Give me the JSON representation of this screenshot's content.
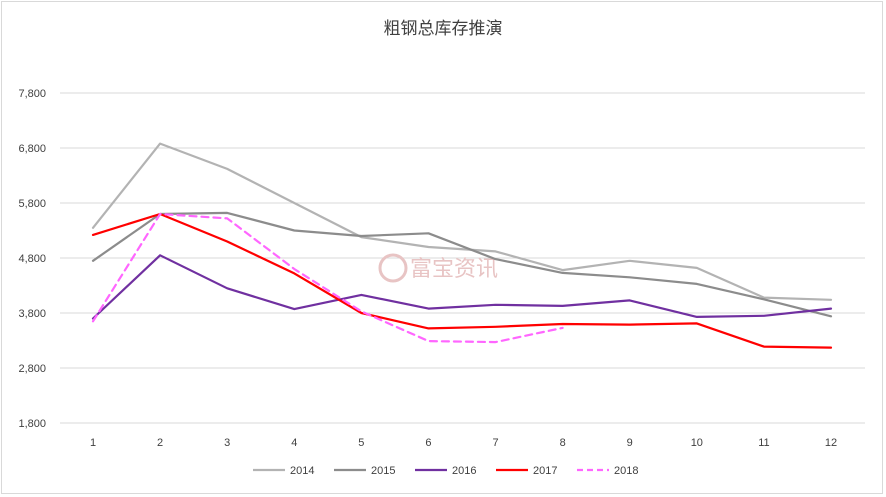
{
  "chart_data": {
    "type": "line",
    "title": "粗钢总库存推演",
    "categories": [
      "1",
      "2",
      "3",
      "4",
      "5",
      "6",
      "7",
      "8",
      "9",
      "10",
      "11",
      "12"
    ],
    "y_ticks": [
      "7,800",
      "6,800",
      "5,800",
      "4,800",
      "3,800",
      "2,800",
      "1,800"
    ],
    "ylim": [
      1800,
      7800
    ],
    "series": [
      {
        "name": "2014",
        "color": "#b3b3b3",
        "dashed": false,
        "values": [
          5350,
          6880,
          6420,
          5800,
          5180,
          5000,
          4920,
          4580,
          4750,
          4620,
          4080,
          4040
        ]
      },
      {
        "name": "2015",
        "color": "#8c8c8c",
        "dashed": false,
        "values": [
          4750,
          5600,
          5620,
          5300,
          5200,
          5250,
          4780,
          4530,
          4450,
          4330,
          4050,
          3740
        ]
      },
      {
        "name": "2016",
        "color": "#7030a0",
        "dashed": false,
        "values": [
          3700,
          4850,
          4250,
          3870,
          4130,
          3880,
          3950,
          3930,
          4030,
          3730,
          3750,
          3880
        ]
      },
      {
        "name": "2017",
        "color": "#ff0000",
        "dashed": false,
        "values": [
          5220,
          5600,
          5100,
          4520,
          3800,
          3520,
          3550,
          3600,
          3590,
          3610,
          3190,
          3170
        ]
      },
      {
        "name": "2018",
        "color": "#ff66ff",
        "dashed": true,
        "values": [
          3650,
          5600,
          5520,
          4600,
          3830,
          3290,
          3270,
          3530,
          null,
          null,
          null,
          null
        ]
      }
    ],
    "grid": true,
    "legend_position": "bottom"
  },
  "watermark": "富宝资讯"
}
